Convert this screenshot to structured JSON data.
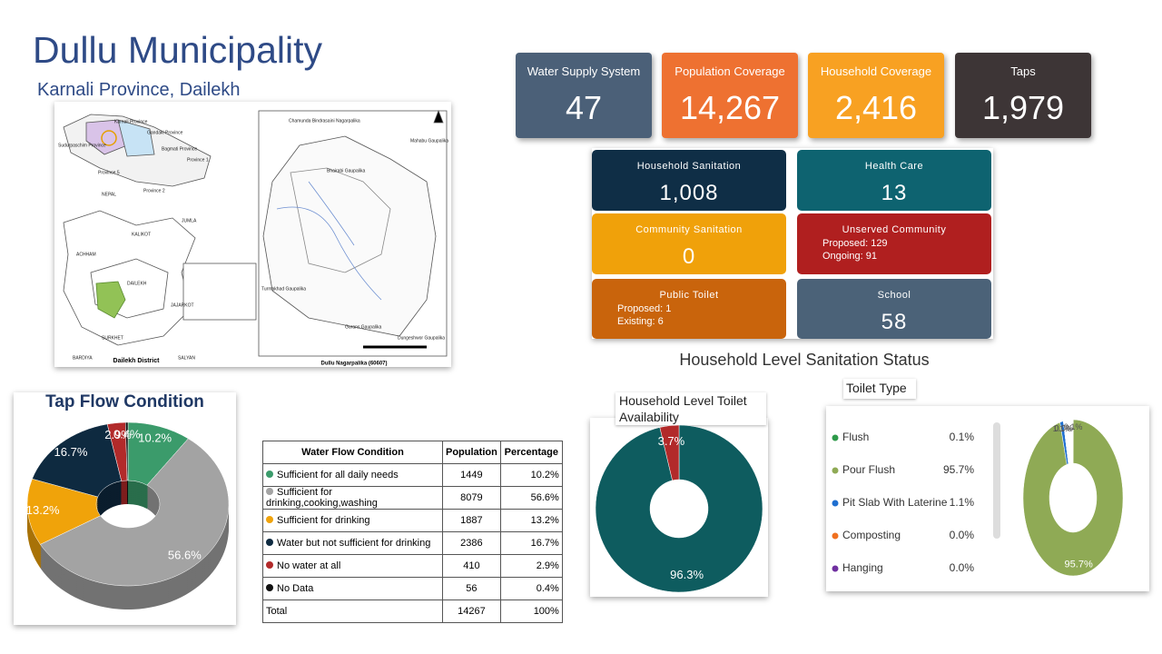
{
  "header": {
    "title": "Dullu Municipality",
    "subtitle": "Karnali Province, Dailekh"
  },
  "map": {
    "labels": [
      "Karnali Province",
      "Gandaki Province",
      "Sudurpaschim Province",
      "Bagmati Province",
      "Province 1",
      "Province 2",
      "Province 5",
      "NEPAL",
      "JUMLA",
      "KALIKOT",
      "ACHHAM",
      "DAILEKH",
      "JAJARKOT",
      "SURKHET",
      "SALYAN",
      "BARDIYA",
      "Chamunda Bindrasaini Nagarpalika",
      "Mahabu Gaupalika",
      "Bhairabi Gaupalika",
      "Turmakhad Gaupalika",
      "Gurans Gaupalika",
      "Dungeshwor Gaupalika"
    ],
    "caption_left": "Dailekh District",
    "caption_right": "Dullu Nagarpalika (60607)"
  },
  "kpis": [
    {
      "label": "Water Supply System",
      "value": "47",
      "color": "#4b6078"
    },
    {
      "label": "Population Coverage",
      "value": "14,267",
      "color": "#ee7131"
    },
    {
      "label": "Household Coverage",
      "value": "2,416",
      "color": "#f8a122"
    },
    {
      "label": "Taps",
      "value": "1,979",
      "color": "#3d3536"
    }
  ],
  "sanitation": {
    "title": "Household Level Sanitation Status",
    "cards": [
      {
        "label": "Household Sanitation",
        "value": "1,008",
        "color": "#0f2e46"
      },
      {
        "label": "Health Care",
        "value": "13",
        "color": "#0e6370"
      },
      {
        "label": "Community Sanitation",
        "value": "0",
        "color": "#f0a10a"
      },
      {
        "label": "Unserved Community",
        "lines": [
          "Proposed: 129",
          "Ongoing: 91"
        ],
        "color": "#b01f1f"
      },
      {
        "label": "Public Toilet",
        "lines": [
          "Proposed: 1",
          "Existing: 6"
        ],
        "color": "#c9640c"
      },
      {
        "label": "School",
        "value": "58",
        "color": "#4b6278"
      }
    ]
  },
  "table": {
    "columns": [
      "Water Flow Condition",
      "Population",
      "Percentage"
    ],
    "rows": [
      [
        "Sufficient for all daily needs",
        "1449",
        "10.2%"
      ],
      [
        "Sufficient for drinking,cooking,washing",
        "8079",
        "56.6%"
      ],
      [
        "Sufficient for drinking",
        "1887",
        "13.2%"
      ],
      [
        "Water but not sufficient for drinking",
        "2386",
        "16.7%"
      ],
      [
        "No water at all",
        "410",
        "2.9%"
      ],
      [
        "No Data",
        "56",
        "0.4%"
      ],
      [
        "Total",
        "14267",
        "100%"
      ]
    ],
    "colors": [
      "#3b9b6b",
      "#a3a3a3",
      "#f0a30a",
      "#0e2a40",
      "#b22a2a",
      "#111111"
    ]
  },
  "chart_data": [
    {
      "type": "pie",
      "title": "Tap Flow Condition",
      "values": [
        10.2,
        56.6,
        13.2,
        16.7,
        2.9,
        0.4
      ],
      "value_labels": [
        "10.2%",
        "56.6%",
        "13.2%",
        "16.7%",
        "2.9%",
        "0.4%"
      ],
      "colors": [
        "#3b9b6b",
        "#a3a3a3",
        "#f0a30a",
        "#0e2a40",
        "#b22a2a",
        "#111111"
      ]
    },
    {
      "type": "pie",
      "title": "Household Level Toilet Availability",
      "values": [
        96.3,
        3.7
      ],
      "value_labels": [
        "96.3%",
        "3.7%"
      ],
      "colors": [
        "#0e5c5f",
        "#b22a2a"
      ]
    },
    {
      "type": "pie",
      "title": "Toilet Type",
      "categories": [
        "Flush",
        "Pour Flush",
        "Pit Slab With Laterine",
        "Composting",
        "Hanging"
      ],
      "values": [
        0.1,
        95.7,
        1.1,
        0.0,
        0.0
      ],
      "value_labels": [
        "0.1%",
        "95.7%",
        "1.1%",
        "0.0%",
        "0.0%"
      ],
      "colors": [
        "#2e9a4a",
        "#8faa55",
        "#1f6fd0",
        "#f07020",
        "#7030a0"
      ]
    }
  ]
}
